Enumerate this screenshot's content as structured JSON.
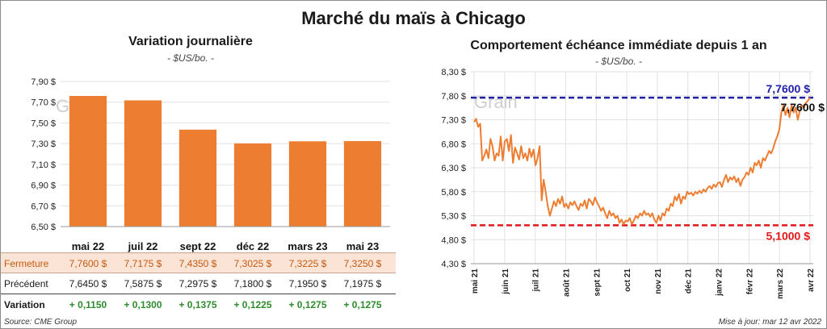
{
  "title": "Marché du maïs à Chicago",
  "colors": {
    "bar": "#ed7d31",
    "line": "#ed7d31",
    "resistance": "#1f1fa8",
    "support": "#e01818",
    "variation": "#2e8b2e",
    "grid": "#e2e2e2"
  },
  "watermark": "Grain",
  "footer": {
    "source": "Source: CME Group",
    "update": "Mise à jour: mar 12 avr 2022"
  },
  "chart_data": [
    {
      "type": "bar",
      "title": "Variation journalière",
      "unit": "- $US/bo. -",
      "categories": [
        "mai 22",
        "juil 22",
        "sept 22",
        "déc 22",
        "mars 23",
        "mai 23"
      ],
      "values": [
        7.76,
        7.7175,
        7.435,
        7.3025,
        7.3225,
        7.325
      ],
      "ylim": [
        6.5,
        7.9
      ],
      "yticks": [
        6.5,
        6.7,
        6.9,
        7.1,
        7.3,
        7.5,
        7.7,
        7.9
      ],
      "ytick_labels": [
        "6,50 $",
        "6,70 $",
        "6,90 $",
        "7,10 $",
        "7,30 $",
        "7,50 $",
        "7,70 $",
        "7,90 $"
      ],
      "grid": true,
      "table": {
        "rows": [
          {
            "label": "Fermeture",
            "values": [
              "7,7600  $",
              "7,7175  $",
              "7,4350  $",
              "7,3025  $",
              "7,3225  $",
              "7,3250  $"
            ]
          },
          {
            "label": "Précédent",
            "values": [
              "7,6450  $",
              "7,5875  $",
              "7,2975  $",
              "7,1800  $",
              "7,1950  $",
              "7,1975  $"
            ]
          },
          {
            "label": "Variation",
            "values": [
              "+ 0,1150",
              "+ 0,1300",
              "+ 0,1375",
              "+ 0,1225",
              "+ 0,1275",
              "+ 0,1275"
            ]
          }
        ]
      }
    },
    {
      "type": "line",
      "title": "Comportement  échéance immédiate depuis 1 an",
      "unit": "- $US/bo. -",
      "ylim": [
        4.3,
        8.3
      ],
      "yticks": [
        4.3,
        4.8,
        5.3,
        5.8,
        6.3,
        6.8,
        7.3,
        7.8,
        8.3
      ],
      "ytick_labels": [
        "4,30 $",
        "4,80 $",
        "5,30 $",
        "5,80 $",
        "6,30 $",
        "6,80 $",
        "7,30 $",
        "7,80 $",
        "8,30 $"
      ],
      "xticks": [
        "mai 21",
        "juin 21",
        "juil 21",
        "août 21",
        "sept 21",
        "oct 21",
        "nov 21",
        "déc 21",
        "janv 22",
        "févr 22",
        "mars 22",
        "avr 22"
      ],
      "grid": true,
      "high_line": {
        "value": 7.76,
        "label": "7,7600 $"
      },
      "low_line": {
        "value": 5.1,
        "label": "5,1000 $"
      },
      "last_value_label": "7,7600 $",
      "series": [
        {
          "values": [
            7.25,
            7.32,
            7.15,
            7.22,
            6.45,
            6.55,
            6.68,
            6.5,
            6.9,
            6.75,
            6.45,
            6.6,
            6.55,
            6.95,
            6.45,
            6.85,
            6.9,
            6.65,
            6.98,
            6.4,
            6.72,
            6.6,
            6.47,
            6.75,
            6.5,
            6.6,
            6.45,
            6.7,
            6.52,
            6.68,
            6.35,
            6.5,
            6.75,
            5.62,
            6.05,
            5.78,
            5.5,
            5.3,
            5.45,
            5.6,
            5.5,
            5.65,
            5.55,
            5.7,
            5.48,
            5.55,
            5.45,
            5.58,
            5.52,
            5.6,
            5.5,
            5.42,
            5.55,
            5.5,
            5.62,
            5.45,
            5.65,
            5.6,
            5.52,
            5.68,
            5.58,
            5.5,
            5.4,
            5.47,
            5.35,
            5.25,
            5.4,
            5.3,
            5.35,
            5.25,
            5.3,
            5.15,
            5.22,
            5.12,
            5.2,
            5.18,
            5.25,
            5.12,
            5.2,
            5.3,
            5.25,
            5.35,
            5.3,
            5.4,
            5.32,
            5.35,
            5.28,
            5.35,
            5.22,
            5.15,
            5.3,
            5.2,
            5.35,
            5.3,
            5.45,
            5.4,
            5.55,
            5.5,
            5.7,
            5.62,
            5.75,
            5.55,
            5.7,
            5.65,
            5.8,
            5.75,
            5.78,
            5.72,
            5.8,
            5.76,
            5.82,
            5.77,
            5.85,
            5.8,
            5.88,
            5.92,
            5.86,
            5.95,
            5.9,
            5.98,
            6.0,
            5.9,
            6.05,
            6.15,
            6.0,
            6.1,
            6.05,
            6.12,
            6.0,
            6.08,
            5.92,
            6.05,
            6.1,
            6.2,
            6.15,
            6.3,
            6.2,
            6.4,
            6.35,
            6.45,
            6.3,
            6.5,
            6.45,
            6.55,
            6.65,
            6.6,
            6.7,
            6.85,
            6.95,
            7.1,
            7.45,
            7.6,
            7.4,
            7.55,
            7.35,
            7.6,
            7.45,
            7.55,
            7.3,
            7.48,
            7.6,
            7.55,
            7.65,
            7.7,
            7.76
          ]
        }
      ]
    }
  ]
}
